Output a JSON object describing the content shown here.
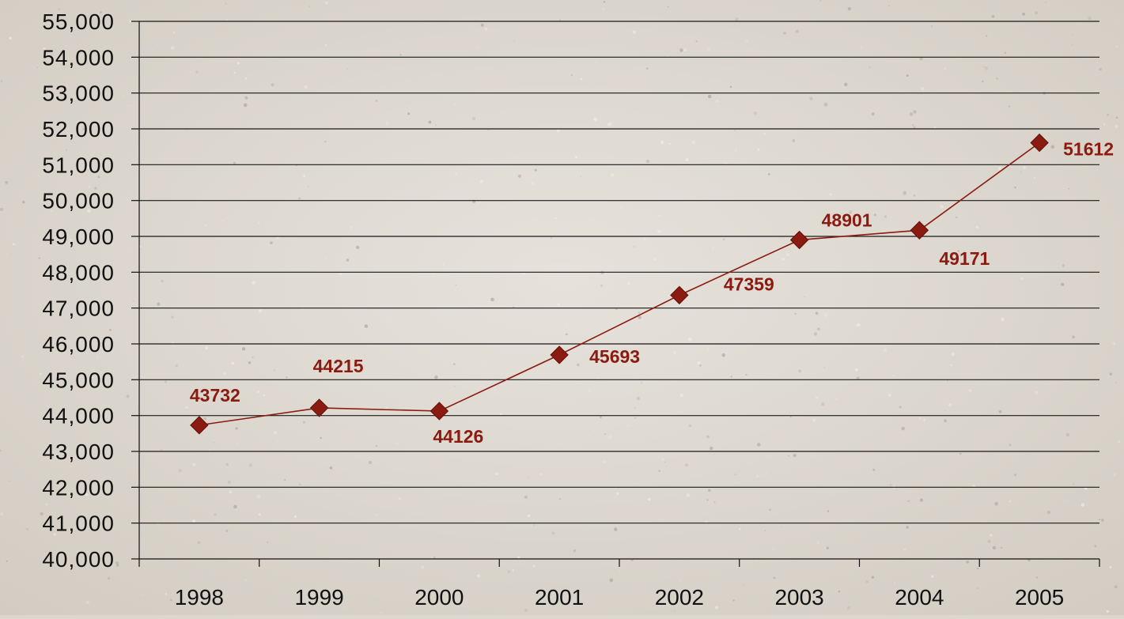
{
  "chart_data": {
    "type": "line",
    "title": "",
    "xlabel": "",
    "ylabel": "",
    "categories": [
      "1998",
      "1999",
      "2000",
      "2001",
      "2002",
      "2003",
      "2004",
      "2005"
    ],
    "series": [
      {
        "values": [
          43732,
          44215,
          44126,
          45693,
          47359,
          48901,
          49171,
          51612
        ],
        "data_labels": [
          "43732",
          "44215",
          "44126",
          "45693",
          "47359",
          "48901",
          "49171",
          "51612"
        ],
        "color": "#8b1a10",
        "marker": "diamond"
      }
    ],
    "ylim": [
      40000,
      55000
    ],
    "y_ticks": [
      "40,000",
      "41,000",
      "42,000",
      "43,000",
      "44,000",
      "45,000",
      "46,000",
      "47,000",
      "48,000",
      "49,000",
      "50,000",
      "51,000",
      "52,000",
      "53,000",
      "54,000",
      "55,000"
    ],
    "y_tick_values": [
      40000,
      41000,
      42000,
      43000,
      44000,
      45000,
      46000,
      47000,
      48000,
      49000,
      50000,
      51000,
      52000,
      53000,
      54000,
      55000
    ],
    "grid": true,
    "legend": "none",
    "background_color": "#dcd7cf",
    "axis_color": "#111111",
    "label_color": "#8b1a10"
  }
}
